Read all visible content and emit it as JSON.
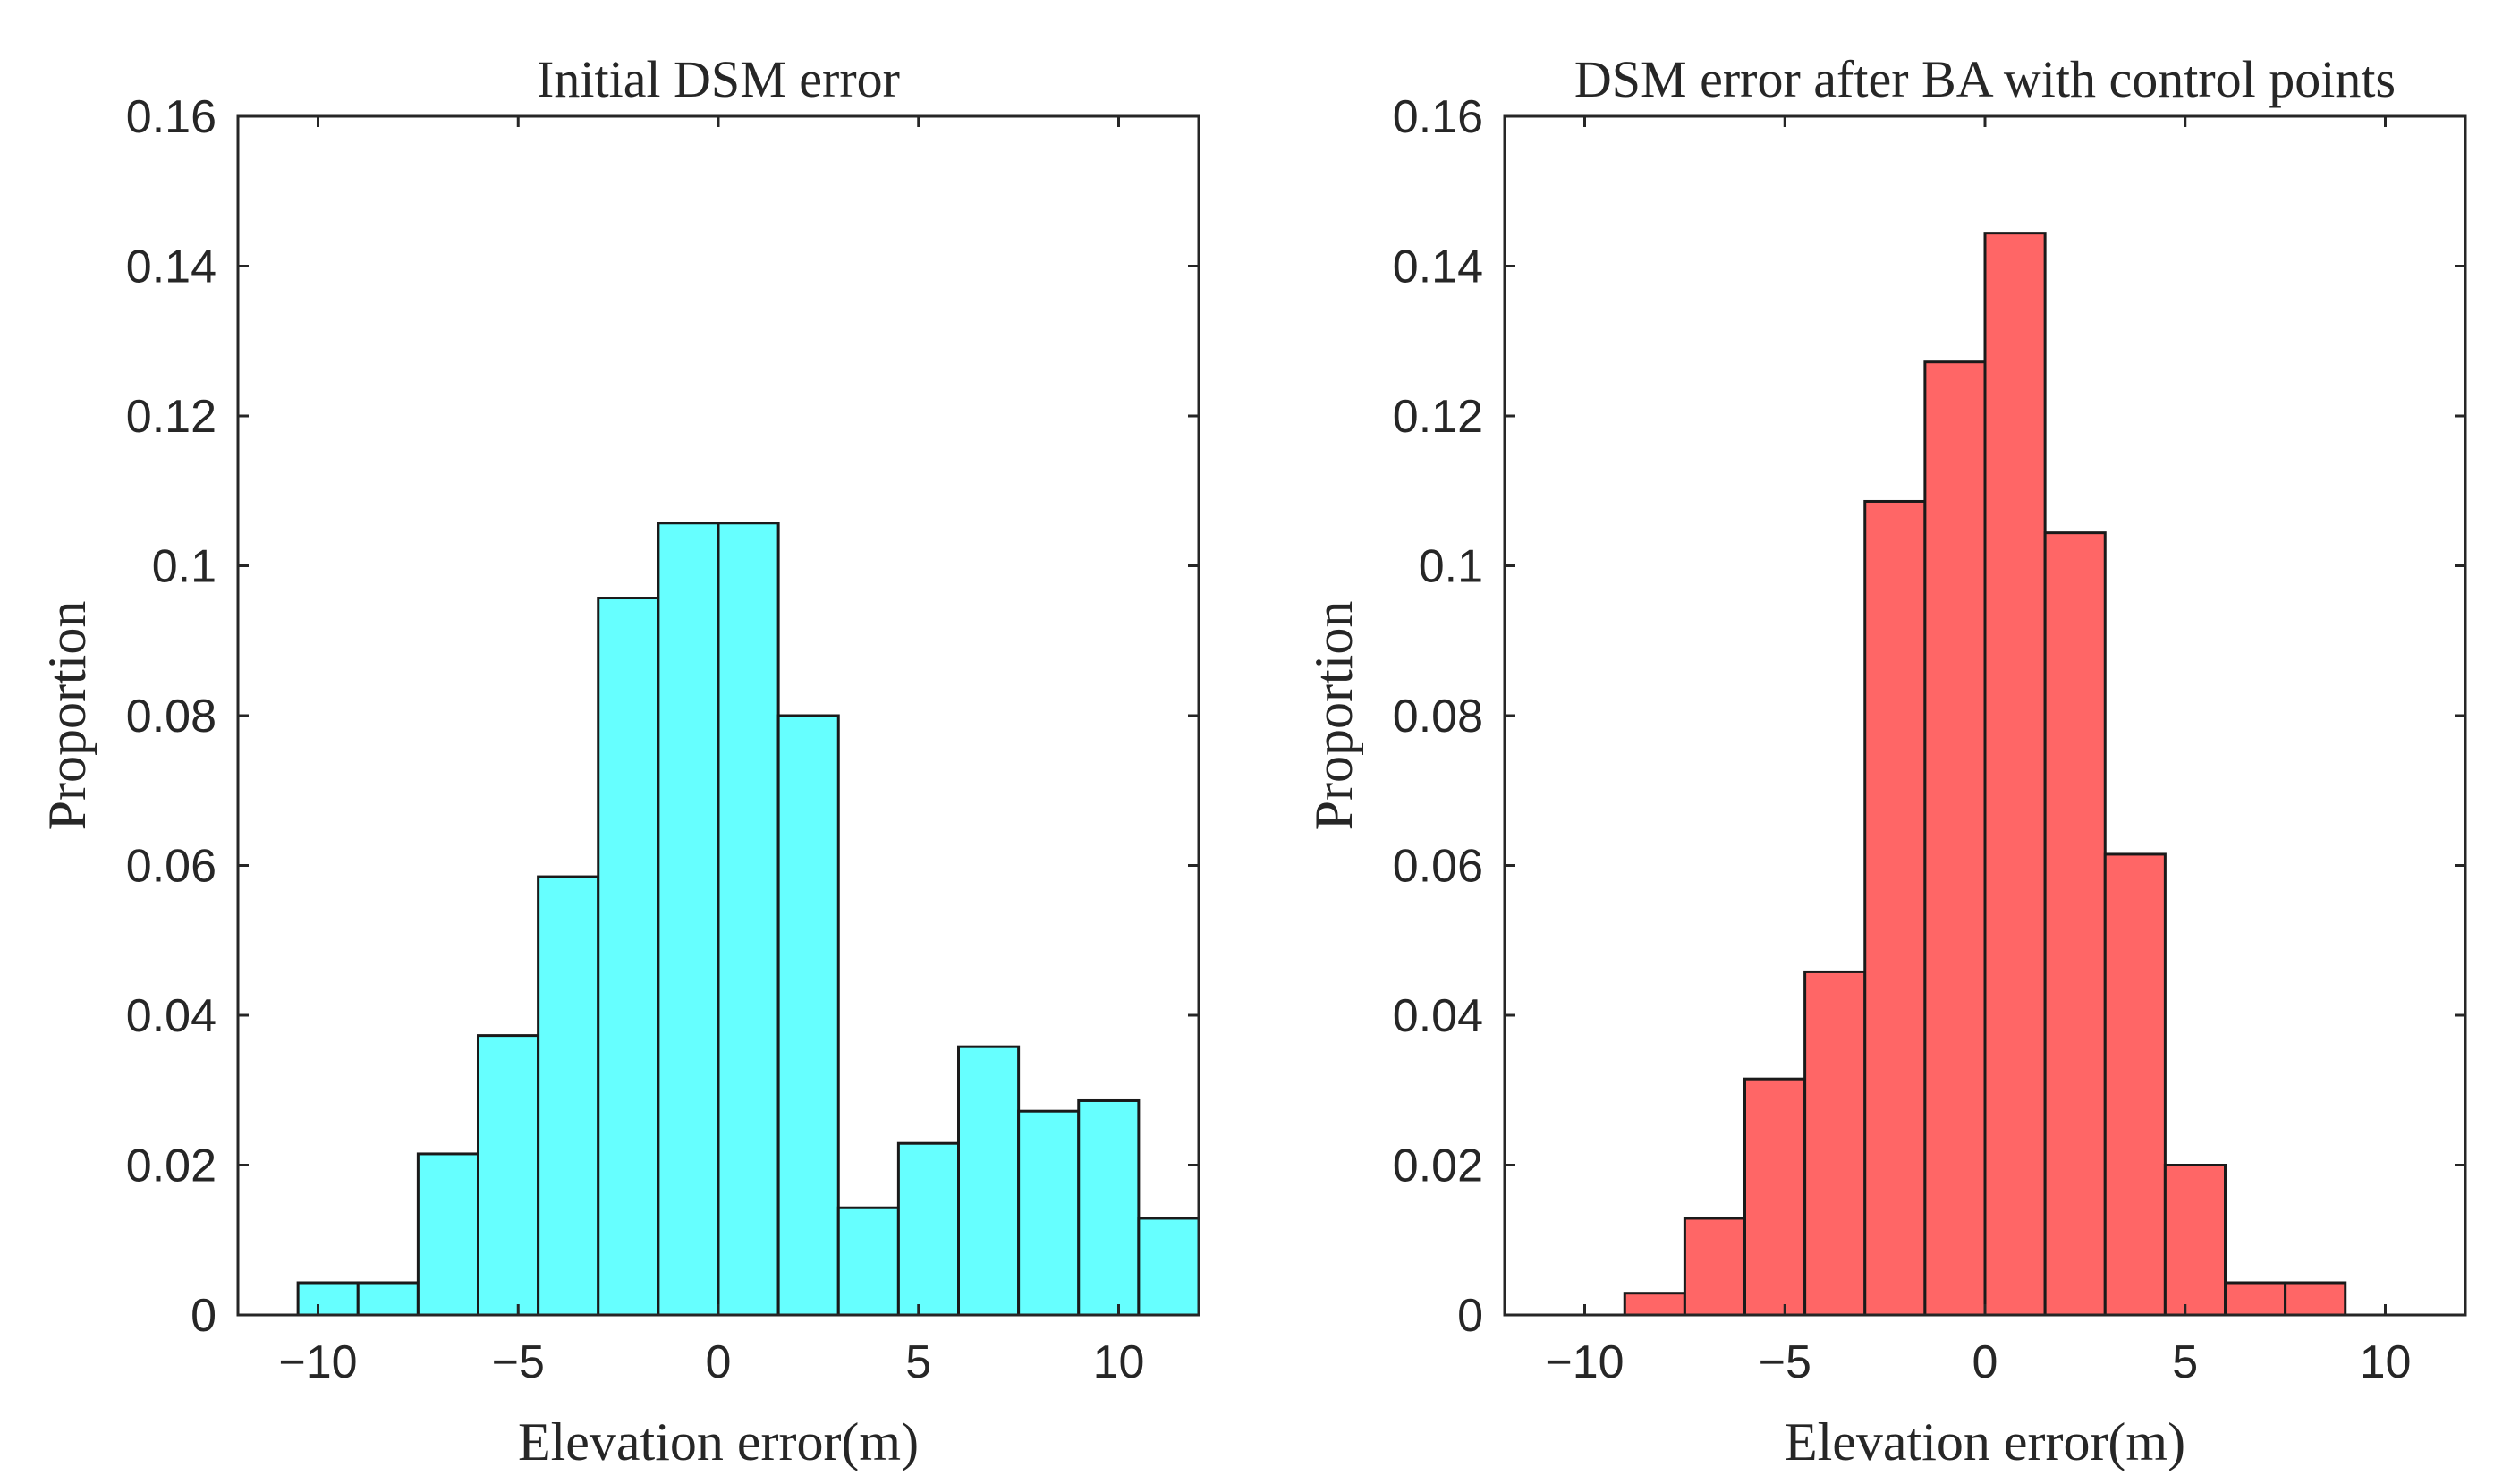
{
  "chart_data": [
    {
      "type": "bar",
      "histogram": true,
      "title": "Initial DSM error",
      "xlabel": "Elevation error(m)",
      "ylabel": "Proportion",
      "xlim": [
        -12,
        12
      ],
      "ylim": [
        0,
        0.16
      ],
      "xticks": [
        -10,
        -5,
        0,
        5,
        10
      ],
      "xtick_labels": [
        "−10",
        "−5",
        "0",
        "5",
        "10"
      ],
      "yticks": [
        0,
        0.02,
        0.04,
        0.06,
        0.08,
        0.1,
        0.12,
        0.14,
        0.16
      ],
      "ytick_labels": [
        "0",
        "0.02",
        "0.04",
        "0.06",
        "0.08",
        "0.1",
        "0.12",
        "0.14",
        "0.16"
      ],
      "bin_width": 1.5,
      "bin_edges": [
        -10.5,
        -9,
        -7.5,
        -6,
        -4.5,
        -3,
        -1.5,
        0,
        1.5,
        3,
        4.5,
        6,
        7.5,
        9,
        10.5,
        12
      ],
      "values": [
        0.0043,
        0.0043,
        0.0215,
        0.0373,
        0.0585,
        0.0957,
        0.1057,
        0.1057,
        0.08,
        0.0143,
        0.0229,
        0.0358,
        0.0272,
        0.0286,
        0.0129
      ],
      "color": "#66ffff",
      "edge_color": "#1a1a1a"
    },
    {
      "type": "bar",
      "histogram": true,
      "title": "DSM error after BA with control points",
      "xlabel": "Elevation error(m)",
      "ylabel": "Proportion",
      "xlim": [
        -12,
        12
      ],
      "ylim": [
        0,
        0.16
      ],
      "xticks": [
        -10,
        -5,
        0,
        5,
        10
      ],
      "xtick_labels": [
        "−10",
        "−5",
        "0",
        "5",
        "10"
      ],
      "yticks": [
        0,
        0.02,
        0.04,
        0.06,
        0.08,
        0.1,
        0.12,
        0.14,
        0.16
      ],
      "ytick_labels": [
        "0",
        "0.02",
        "0.04",
        "0.06",
        "0.08",
        "0.1",
        "0.12",
        "0.14",
        "0.16"
      ],
      "bin_width": 1.5,
      "bin_edges": [
        -9,
        -7.5,
        -6,
        -4.5,
        -3,
        -1.5,
        0,
        1.5,
        3,
        4.5,
        6,
        7.5,
        9
      ],
      "values": [
        0.0029,
        0.0129,
        0.0315,
        0.0458,
        0.1086,
        0.1272,
        0.1444,
        0.1044,
        0.0615,
        0.02,
        0.0043,
        0.0043
      ],
      "color": "#ff6666",
      "edge_color": "#1a1a1a"
    }
  ]
}
